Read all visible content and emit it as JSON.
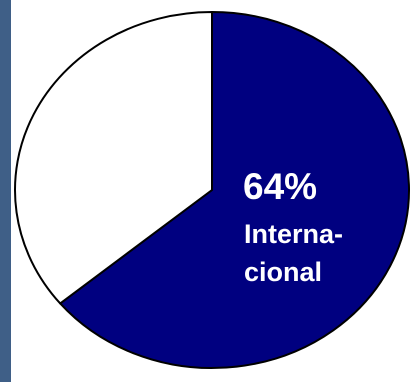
{
  "colors": {
    "slice_main": "#000080",
    "slice_rest": "#ffffff",
    "outline": "#000000",
    "left_bar": "#3f5f87"
  },
  "chart_data": {
    "type": "pie",
    "start": "12 o'clock",
    "direction": "clockwise",
    "slices": [
      {
        "value": 64,
        "color": "#000080",
        "label_pct": "64%",
        "label_lines": [
          "Interna-",
          "cional"
        ]
      },
      {
        "value": 36,
        "color": "#ffffff"
      }
    ]
  }
}
